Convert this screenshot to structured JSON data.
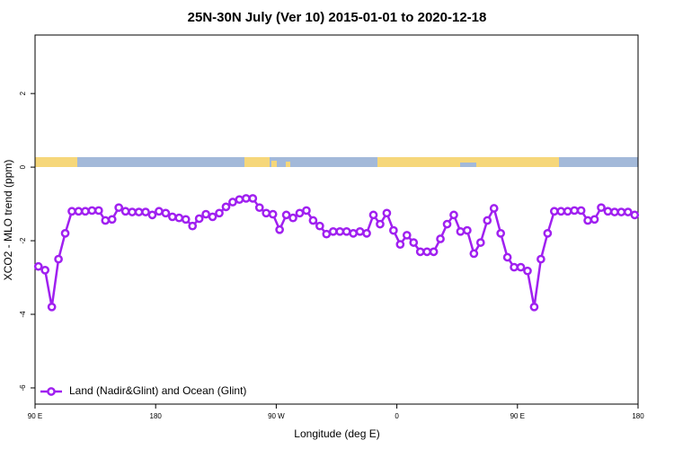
{
  "chart_data": {
    "type": "line",
    "title": "25N-30N July (Ver 10)   2015-01-01 to 2020-12-18",
    "xlabel": "Longitude (deg E)",
    "ylabel": "XCO2 - MLO trend (ppm)",
    "x": [
      92.5,
      97.5,
      102.5,
      107.5,
      112.5,
      117.5,
      122.5,
      127.5,
      132.5,
      137.5,
      142.5,
      147.5,
      152.5,
      157.5,
      162.5,
      167.5,
      172.5,
      177.5,
      182.5,
      187.5,
      192.5,
      197.5,
      202.5,
      207.5,
      212.5,
      217.5,
      222.5,
      227.5,
      232.5,
      237.5,
      242.5,
      247.5,
      252.5,
      257.5,
      262.5,
      267.5,
      272.5,
      277.5,
      282.5,
      287.5,
      292.5,
      297.5,
      302.5,
      307.5,
      312.5,
      317.5,
      322.5,
      327.5,
      332.5,
      337.5,
      342.5,
      347.5,
      352.5,
      357.5,
      362.5,
      367.5,
      372.5,
      377.5,
      382.5,
      387.5,
      392.5,
      397.5,
      402.5,
      407.5,
      412.5,
      417.5,
      422.5,
      427.5,
      432.5,
      437.5,
      442.5,
      447.5,
      452.5,
      457.5,
      462.5,
      467.5,
      472.5,
      477.5,
      482.5,
      487.5,
      492.5,
      497.5,
      502.5,
      507.5,
      512.5,
      517.5,
      522.5,
      527.5,
      532.5,
      537.5
    ],
    "series": [
      {
        "name": "Land (Nadir&Glint) and Ocean (Glint)",
        "color": "#a020f0",
        "values": [
          -2.7,
          -2.8,
          -3.8,
          -2.5,
          -1.8,
          -1.2,
          -1.2,
          -1.2,
          -1.18,
          -1.18,
          -1.45,
          -1.42,
          -1.1,
          -1.2,
          -1.22,
          -1.22,
          -1.22,
          -1.3,
          -1.2,
          -1.25,
          -1.35,
          -1.38,
          -1.42,
          -1.6,
          -1.4,
          -1.28,
          -1.35,
          -1.25,
          -1.08,
          -0.95,
          -0.88,
          -0.85,
          -0.85,
          -1.1,
          -1.25,
          -1.28,
          -1.7,
          -1.3,
          -1.38,
          -1.25,
          -1.18,
          -1.45,
          -1.6,
          -1.82,
          -1.75,
          -1.75,
          -1.75,
          -1.8,
          -1.75,
          -1.8,
          -1.3,
          -1.55,
          -1.25,
          -1.72,
          -2.1,
          -1.85,
          -2.05,
          -2.3,
          -2.3,
          -2.3,
          -1.95,
          -1.55,
          -1.3,
          -1.75,
          -1.72,
          -2.35,
          -2.05,
          -1.45,
          -1.12,
          -1.8,
          -2.45,
          -2.72,
          -2.72,
          -2.82,
          -3.8,
          -2.5,
          -1.8,
          -1.2,
          -1.2,
          -1.2,
          -1.18,
          -1.18,
          -1.45,
          -1.42,
          -1.1,
          -1.2,
          -1.22,
          -1.22,
          -1.22,
          -1.3
        ]
      }
    ],
    "xlim": [
      90,
      540
    ],
    "xticks": [
      {
        "value": 90,
        "label": "90 E"
      },
      180,
      {
        "value": 270,
        "label": "90 W"
      },
      {
        "value": 360,
        "label": "0"
      },
      {
        "value": 450,
        "label": "90 E"
      },
      {
        "value": 540,
        "label": "180"
      }
    ],
    "ylim": [
      -6.44,
      3.59
    ],
    "yticks": [
      2,
      0,
      -2,
      -4,
      -6
    ],
    "legend": "lower left"
  }
}
